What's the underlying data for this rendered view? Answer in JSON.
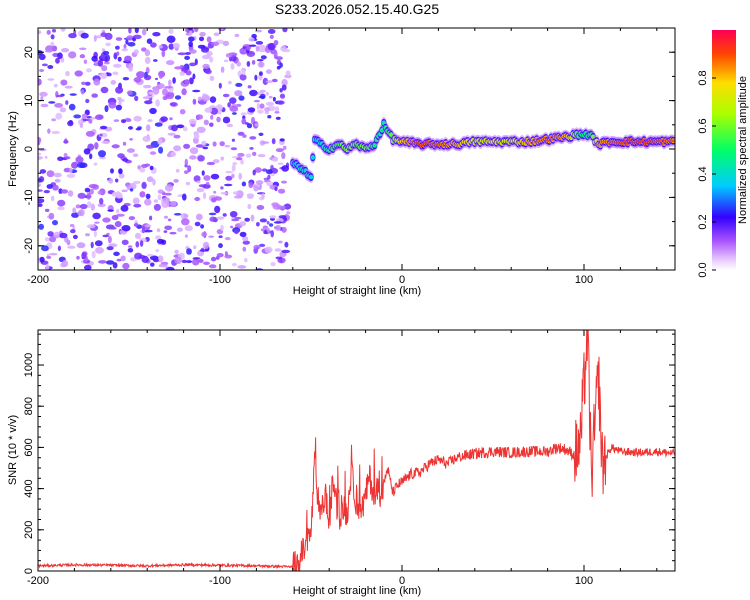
{
  "figure_title": "S233.2026.052.15.40.G25",
  "colors": {
    "snr_line": "#ee3333",
    "axis": "#000000"
  },
  "chart_data": [
    {
      "type": "heatmap",
      "title": "S233.2026.052.15.40.G25",
      "xlabel": "Height of straight line (km)",
      "ylabel": "Frequency (Hz)",
      "xlim": [
        -200,
        150
      ],
      "ylim": [
        -25,
        25
      ],
      "xticks": [
        -200,
        -100,
        0,
        100
      ],
      "xtick_labels": [
        "-200",
        "-100",
        "0",
        "100"
      ],
      "yticks": [
        -20,
        -10,
        0,
        10,
        20
      ],
      "ytick_labels": [
        "-20",
        "-10",
        "0",
        "10",
        "20"
      ],
      "colorbar": {
        "label": "Normalized spectral amplitude",
        "range": [
          0,
          1
        ],
        "ticks": [
          0.0,
          0.2,
          0.4,
          0.6,
          0.8
        ],
        "tick_labels": [
          "0.0",
          "0.2",
          "0.4",
          "0.6",
          "0.8"
        ]
      },
      "noise_region_x": [
        -200,
        -60
      ],
      "ridge": [
        {
          "x": -60,
          "f": -3,
          "a": 0.25
        },
        {
          "x": -55,
          "f": -4,
          "a": 0.35
        },
        {
          "x": -50,
          "f": -6,
          "a": 0.3
        },
        {
          "x": -48,
          "f": 2,
          "a": 0.35
        },
        {
          "x": -45,
          "f": 1,
          "a": 0.3
        },
        {
          "x": -40,
          "f": 0,
          "a": 0.45
        },
        {
          "x": -35,
          "f": 1,
          "a": 0.55
        },
        {
          "x": -30,
          "f": 0,
          "a": 0.6
        },
        {
          "x": -25,
          "f": 1,
          "a": 0.55
        },
        {
          "x": -20,
          "f": 0,
          "a": 0.6
        },
        {
          "x": -15,
          "f": 1,
          "a": 0.45
        },
        {
          "x": -10,
          "f": 5,
          "a": 0.4
        },
        {
          "x": -5,
          "f": 2,
          "a": 0.6
        },
        {
          "x": 0,
          "f": 1.5,
          "a": 0.8
        },
        {
          "x": 10,
          "f": 1,
          "a": 0.95
        },
        {
          "x": 20,
          "f": 1,
          "a": 0.9
        },
        {
          "x": 30,
          "f": 1,
          "a": 0.85
        },
        {
          "x": 40,
          "f": 1.5,
          "a": 0.7
        },
        {
          "x": 50,
          "f": 1.5,
          "a": 0.75
        },
        {
          "x": 60,
          "f": 1.5,
          "a": 0.7
        },
        {
          "x": 70,
          "f": 1.5,
          "a": 0.85
        },
        {
          "x": 80,
          "f": 2,
          "a": 0.9
        },
        {
          "x": 90,
          "f": 2.5,
          "a": 0.85
        },
        {
          "x": 97,
          "f": 3,
          "a": 0.5
        },
        {
          "x": 103,
          "f": 3,
          "a": 0.4
        },
        {
          "x": 108,
          "f": 1,
          "a": 0.85
        },
        {
          "x": 115,
          "f": 1.5,
          "a": 0.9
        },
        {
          "x": 125,
          "f": 1.5,
          "a": 0.95
        },
        {
          "x": 135,
          "f": 1.5,
          "a": 0.95
        },
        {
          "x": 145,
          "f": 1.5,
          "a": 0.9
        },
        {
          "x": 150,
          "f": 1.5,
          "a": 0.9
        }
      ]
    },
    {
      "type": "line",
      "xlabel": "Height of straight line (km)",
      "ylabel": "SNR (10 * v/v)",
      "xlim": [
        -200,
        150
      ],
      "ylim": [
        0,
        1170
      ],
      "xticks": [
        -200,
        -100,
        0,
        100
      ],
      "xtick_labels": [
        "-200",
        "-100",
        "0",
        "100"
      ],
      "yticks": [
        0,
        200,
        400,
        600,
        800,
        1000
      ],
      "ytick_labels": [
        "0",
        "200",
        "400",
        "600",
        "800",
        "1000"
      ],
      "series": [
        {
          "name": "SNR",
          "x": [
            -200,
            -180,
            -160,
            -140,
            -120,
            -100,
            -80,
            -60,
            -55,
            -50,
            -48,
            -45,
            -42,
            -40,
            -38,
            -35,
            -32,
            -30,
            -28,
            -25,
            -22,
            -20,
            -18,
            -15,
            -12,
            -10,
            -8,
            -5,
            -2,
            0,
            5,
            10,
            15,
            20,
            25,
            30,
            40,
            50,
            60,
            70,
            80,
            85,
            90,
            95,
            98,
            100,
            102,
            104,
            106,
            108,
            110,
            115,
            120,
            130,
            140,
            150
          ],
          "y": [
            25,
            30,
            28,
            25,
            30,
            28,
            25,
            20,
            80,
            180,
            520,
            250,
            380,
            210,
            450,
            260,
            300,
            280,
            480,
            330,
            300,
            360,
            460,
            360,
            380,
            420,
            500,
            380,
            420,
            430,
            470,
            480,
            520,
            540,
            520,
            550,
            570,
            580,
            575,
            580,
            580,
            600,
            590,
            560,
            620,
            900,
            1170,
            450,
            700,
            950,
            520,
            600,
            580,
            575,
            580,
            570
          ]
        }
      ]
    }
  ]
}
